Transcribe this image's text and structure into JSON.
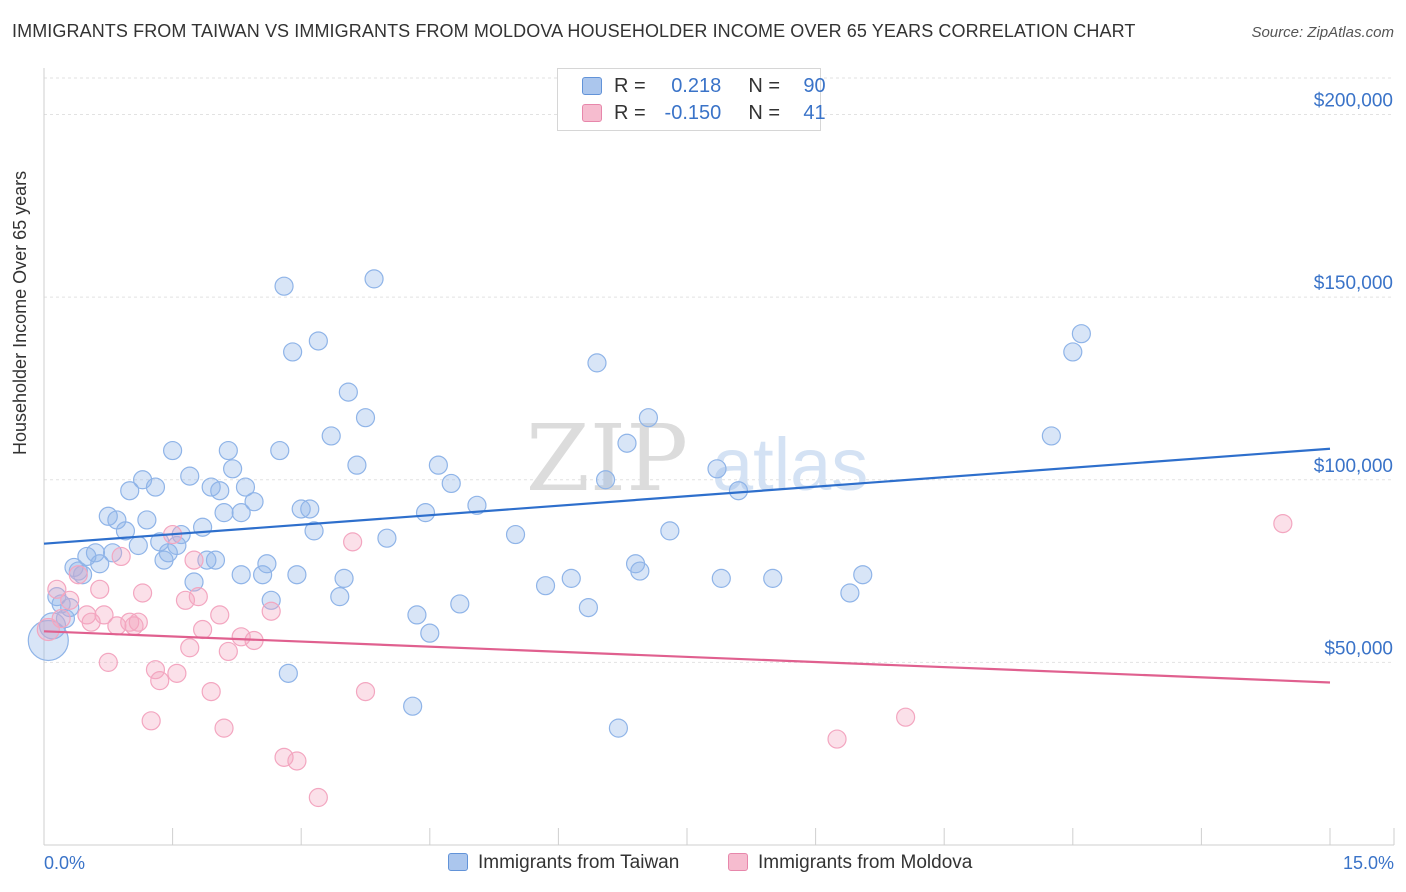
{
  "chart_data": {
    "type": "scatter",
    "title": "IMMIGRANTS FROM TAIWAN VS IMMIGRANTS FROM MOLDOVA HOUSEHOLDER INCOME OVER 65 YEARS CORRELATION CHART",
    "source": "Source: ZipAtlas.com",
    "ylabel": "Householder Income Over 65 years",
    "xlabel": "",
    "xlim": [
      0.0,
      15.0
    ],
    "ylim": [
      0,
      210000
    ],
    "x_tick_labels": {
      "min": "0.0%",
      "max": "15.0%"
    },
    "y_ticks": [
      {
        "value": 50000,
        "label": "$50,000"
      },
      {
        "value": 100000,
        "label": "$100,000"
      },
      {
        "value": 150000,
        "label": "$150,000"
      },
      {
        "value": 200000,
        "label": "$200,000"
      }
    ],
    "legend_stats": [
      {
        "r_label": "R =",
        "r_value": "0.218",
        "n_label": "N =",
        "n_value": "90"
      },
      {
        "r_label": "R =",
        "r_value": "-0.150",
        "n_label": "N =",
        "n_value": "41"
      }
    ],
    "watermark": {
      "zip": "ZIP",
      "atlas": "atlas"
    },
    "series": [
      {
        "name": "Immigrants from Taiwan",
        "color": "#8fb4e8",
        "line_color": "#2e6fcc",
        "trend": {
          "x0": 0.0,
          "y0": 82500,
          "x1": 15.0,
          "y1": 108500
        },
        "points": [
          [
            0.05,
            56000
          ],
          [
            0.1,
            60000
          ],
          [
            0.15,
            68000
          ],
          [
            0.25,
            62000
          ],
          [
            0.2,
            66000
          ],
          [
            0.35,
            76000
          ],
          [
            0.4,
            75000
          ],
          [
            0.45,
            74000
          ],
          [
            0.5,
            79000
          ],
          [
            0.6,
            80000
          ],
          [
            0.65,
            77000
          ],
          [
            0.75,
            90000
          ],
          [
            0.85,
            89000
          ],
          [
            0.95,
            86000
          ],
          [
            1.0,
            97000
          ],
          [
            1.1,
            82000
          ],
          [
            1.15,
            100000
          ],
          [
            1.2,
            89000
          ],
          [
            1.3,
            98000
          ],
          [
            1.35,
            83000
          ],
          [
            1.4,
            78000
          ],
          [
            1.45,
            80000
          ],
          [
            1.5,
            108000
          ],
          [
            1.55,
            82000
          ],
          [
            1.6,
            85000
          ],
          [
            1.7,
            101000
          ],
          [
            1.75,
            72000
          ],
          [
            1.85,
            87000
          ],
          [
            1.9,
            78000
          ],
          [
            1.95,
            98000
          ],
          [
            2.0,
            78000
          ],
          [
            2.05,
            97000
          ],
          [
            2.1,
            91000
          ],
          [
            2.15,
            108000
          ],
          [
            2.2,
            103000
          ],
          [
            2.3,
            74000
          ],
          [
            2.3,
            91000
          ],
          [
            2.35,
            98000
          ],
          [
            2.45,
            94000
          ],
          [
            2.55,
            74000
          ],
          [
            2.6,
            77000
          ],
          [
            2.65,
            67000
          ],
          [
            2.75,
            108000
          ],
          [
            2.8,
            153000
          ],
          [
            2.85,
            47000
          ],
          [
            2.9,
            135000
          ],
          [
            2.95,
            74000
          ],
          [
            3.0,
            92000
          ],
          [
            3.1,
            92000
          ],
          [
            3.15,
            86000
          ],
          [
            3.2,
            138000
          ],
          [
            3.35,
            112000
          ],
          [
            3.45,
            68000
          ],
          [
            3.5,
            73000
          ],
          [
            3.55,
            124000
          ],
          [
            3.65,
            104000
          ],
          [
            3.75,
            117000
          ],
          [
            3.85,
            155000
          ],
          [
            4.0,
            84000
          ],
          [
            4.3,
            38000
          ],
          [
            4.35,
            63000
          ],
          [
            4.45,
            91000
          ],
          [
            4.5,
            58000
          ],
          [
            4.6,
            104000
          ],
          [
            4.75,
            99000
          ],
          [
            4.85,
            66000
          ],
          [
            5.05,
            93000
          ],
          [
            5.5,
            85000
          ],
          [
            5.85,
            71000
          ],
          [
            6.15,
            73000
          ],
          [
            6.35,
            65000
          ],
          [
            6.45,
            132000
          ],
          [
            6.55,
            100000
          ],
          [
            6.7,
            32000
          ],
          [
            6.8,
            110000
          ],
          [
            6.9,
            77000
          ],
          [
            6.95,
            75000
          ],
          [
            7.05,
            117000
          ],
          [
            7.3,
            86000
          ],
          [
            7.85,
            103000
          ],
          [
            7.9,
            73000
          ],
          [
            8.1,
            97000
          ],
          [
            8.5,
            73000
          ],
          [
            9.4,
            69000
          ],
          [
            9.55,
            74000
          ],
          [
            11.75,
            112000
          ],
          [
            12.0,
            135000
          ],
          [
            12.1,
            140000
          ],
          [
            0.3,
            65000
          ],
          [
            0.8,
            80000
          ]
        ]
      },
      {
        "name": "Immigrants from Moldova",
        "color": "#f3a6c0",
        "line_color": "#e0608f",
        "trend": {
          "x0": 0.0,
          "y0": 58500,
          "x1": 15.0,
          "y1": 44500
        },
        "points": [
          [
            0.05,
            59000
          ],
          [
            0.15,
            70000
          ],
          [
            0.2,
            62000
          ],
          [
            0.3,
            67000
          ],
          [
            0.4,
            74000
          ],
          [
            0.5,
            63000
          ],
          [
            0.55,
            61000
          ],
          [
            0.65,
            70000
          ],
          [
            0.7,
            63000
          ],
          [
            0.75,
            50000
          ],
          [
            0.85,
            60000
          ],
          [
            0.9,
            79000
          ],
          [
            1.0,
            61000
          ],
          [
            1.05,
            60000
          ],
          [
            1.1,
            61000
          ],
          [
            1.15,
            69000
          ],
          [
            1.25,
            34000
          ],
          [
            1.3,
            48000
          ],
          [
            1.35,
            45000
          ],
          [
            1.5,
            85000
          ],
          [
            1.55,
            47000
          ],
          [
            1.65,
            67000
          ],
          [
            1.7,
            54000
          ],
          [
            1.75,
            78000
          ],
          [
            1.8,
            68000
          ],
          [
            1.85,
            59000
          ],
          [
            1.95,
            42000
          ],
          [
            2.05,
            63000
          ],
          [
            2.1,
            32000
          ],
          [
            2.15,
            53000
          ],
          [
            2.3,
            57000
          ],
          [
            2.45,
            56000
          ],
          [
            2.65,
            64000
          ],
          [
            2.8,
            24000
          ],
          [
            2.95,
            23000
          ],
          [
            3.2,
            13000
          ],
          [
            3.6,
            83000
          ],
          [
            3.75,
            42000
          ],
          [
            9.25,
            29000
          ],
          [
            10.05,
            35000
          ],
          [
            14.45,
            88000
          ]
        ]
      }
    ]
  }
}
